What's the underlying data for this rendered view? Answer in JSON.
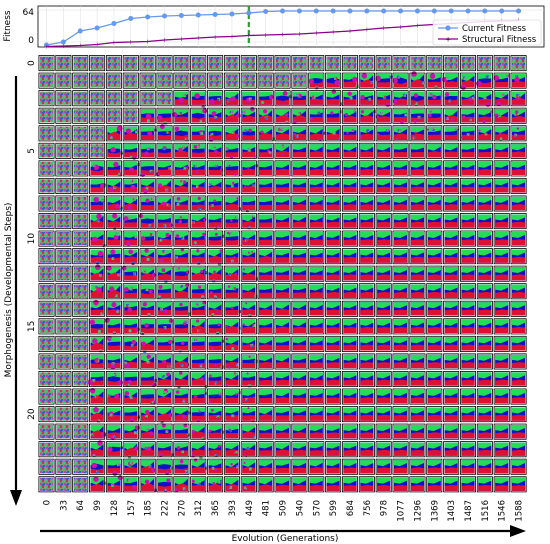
{
  "chart_data": [
    {
      "type": "line",
      "ylabel": "Fitness",
      "yticks": [
        "64",
        "0"
      ],
      "ylim": [
        -10,
        72
      ],
      "x": [
        0,
        33,
        64,
        99,
        128,
        157,
        185,
        222,
        270,
        312,
        365,
        393,
        449,
        481,
        509,
        540,
        570,
        599,
        684,
        756,
        978,
        1077,
        1296,
        1369,
        1403,
        1487,
        1516,
        1546,
        1588
      ],
      "series": [
        {
          "name": "Current Fitness",
          "color": "#6699ee",
          "values": [
            -6,
            0,
            22,
            28,
            37,
            47,
            50,
            52,
            53,
            54,
            55,
            56,
            58,
            61,
            62,
            62,
            62,
            62,
            62,
            62,
            62,
            62,
            62,
            62,
            62,
            62,
            62,
            62,
            62
          ]
        },
        {
          "name": "Structural Fitness",
          "color": "#880088",
          "values": [
            -9,
            -8,
            -7,
            -5,
            -1,
            0,
            1,
            4,
            6,
            8,
            10,
            11,
            13,
            14,
            15,
            16,
            18,
            20,
            22,
            25,
            28,
            30,
            33,
            35,
            37,
            39,
            41,
            42,
            43
          ]
        }
      ],
      "marker_line_x": 449,
      "marker_line_color": "#2ca02c",
      "legend": "lower-right",
      "grid": true
    },
    {
      "type": "heatmap",
      "xlabel": "Evolution (Generations)",
      "ylabel": "Morphogenesis (Developmental Steps)",
      "xticks": [
        "0",
        "33",
        "64",
        "99",
        "128",
        "157",
        "185",
        "222",
        "270",
        "312",
        "365",
        "393",
        "449",
        "481",
        "509",
        "540",
        "570",
        "599",
        "684",
        "756",
        "978",
        "1077",
        "1296",
        "1369",
        "1403",
        "1487",
        "1516",
        "1546",
        "1588"
      ],
      "yticks": [
        "0",
        "5",
        "10",
        "15",
        "20"
      ],
      "rows": 25,
      "columns": 29,
      "colors": {
        "green": "#22dd55",
        "blue": "#1111cc",
        "red": "#dd1133",
        "magenta": "#cc11aa",
        "noise": "#8a8a8a"
      }
    }
  ]
}
